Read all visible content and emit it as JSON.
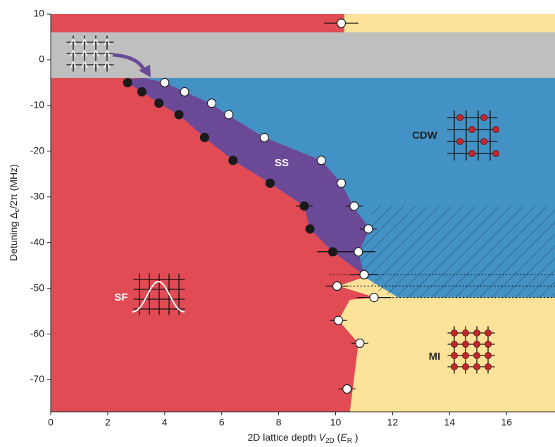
{
  "chart_data": {
    "type": "scatter",
    "xlabel_parts": [
      "2D lattice depth ",
      "V",
      "2D",
      " (",
      "E",
      "R",
      " )"
    ],
    "ylabel_parts": [
      "Detuning Δ",
      "c",
      "/2π (MHz)"
    ],
    "xlim": [
      0,
      17.7
    ],
    "ylim": [
      -77,
      10
    ],
    "xticks": [
      0,
      2,
      4,
      6,
      8,
      10,
      12,
      14,
      16
    ],
    "yticks": [
      10,
      0,
      -10,
      -20,
      -30,
      -40,
      -50,
      -60,
      -70
    ],
    "regions": [
      {
        "color": "#e04b54",
        "x": [
          0,
          17.7,
          17.7,
          0
        ],
        "y": [
          10,
          10,
          -77,
          -77
        ]
      },
      {
        "color": "#fde29a",
        "x": [
          10.3,
          17.7,
          17.7,
          10.3
        ],
        "y": [
          10,
          10,
          6,
          6
        ]
      },
      {
        "color": "#bfbfbf",
        "x": [
          0,
          17.7,
          17.7,
          0
        ],
        "y": [
          6,
          6,
          -4,
          -4
        ]
      },
      {
        "color": "#4392c6",
        "label": "CDW",
        "x": [
          3.3,
          17.7,
          17.7,
          12.2,
          11.4,
          11.0,
          10.8,
          11.2,
          10.6,
          10.2,
          9.5,
          7.5,
          6.2,
          5.6,
          4.7,
          4.0
        ],
        "y": [
          -4,
          -4,
          -52,
          -52,
          -50.5,
          -47,
          -42,
          -37,
          -32,
          -27,
          -22,
          -17,
          -12,
          -9.5,
          -7,
          -5
        ]
      },
      {
        "color": "#6a4a97",
        "label": "SS",
        "x": [
          2.6,
          3.3,
          4.0,
          4.7,
          5.6,
          6.2,
          7.5,
          9.5,
          10.2,
          10.6,
          11.2,
          10.8,
          11.0,
          9.9,
          9.1,
          8.9,
          7.7,
          6.4,
          5.4,
          4.5,
          3.8,
          3.2,
          2.7
        ],
        "y": [
          -4.2,
          -4,
          -5,
          -7,
          -9.5,
          -12,
          -17,
          -22,
          -27,
          -32,
          -37,
          -42,
          -47,
          -42,
          -37,
          -32,
          -27,
          -22,
          -17,
          -12,
          -9.5,
          -7,
          -5
        ]
      },
      {
        "color": "#fde29a",
        "label": "MI",
        "x": [
          11.0,
          12.2,
          17.7,
          17.7,
          10.5,
          10.8,
          10.1,
          10.5,
          11.4,
          10.1
        ],
        "y": [
          -47.5,
          -52,
          -52,
          -77,
          -77,
          -62,
          -57,
          -52.5,
          -52,
          -49.5
        ]
      },
      {
        "color": "none",
        "label": "SF",
        "x": [
          0
        ],
        "y": [
          -77
        ]
      }
    ],
    "hatch": {
      "x": [
        11.3,
        17.7,
        17.7,
        12.2,
        11.4,
        11.0,
        10.8,
        11.2
      ],
      "y": [
        -32,
        -32,
        -52,
        -52,
        -50.5,
        -47,
        -42,
        -37
      ]
    },
    "hlines": [
      {
        "y": -47,
        "x": [
          9.8,
          17.7
        ]
      },
      {
        "y": -49.5,
        "x": [
          10.5,
          17.7
        ]
      },
      {
        "y": -52,
        "x": [
          11.5,
          17.7
        ]
      }
    ],
    "series": [
      {
        "color": "#1a1a1a",
        "fill": "#1a1a1a",
        "x": [
          2.7,
          3.2,
          3.8,
          4.5,
          5.4,
          6.4,
          7.7,
          8.9,
          9.1,
          9.9
        ],
        "y": [
          -5,
          -7,
          -9.5,
          -12,
          -17,
          -22,
          -27,
          -32,
          -37,
          -42
        ],
        "xerr": [
          0,
          0,
          0,
          0,
          0,
          0,
          0,
          0.3,
          0.1,
          0.55
        ]
      },
      {
        "color": "#1a1a1a",
        "fill": "#ffffff",
        "x": [
          10.2,
          4.0,
          4.7,
          5.65,
          6.25,
          7.5,
          9.5,
          10.2,
          10.65,
          11.15,
          10.8,
          11.0,
          10.05,
          11.35,
          10.1,
          10.85,
          10.4
        ],
        "y": [
          8,
          -5,
          -7,
          -9.5,
          -12,
          -17,
          -22,
          -27,
          -32,
          -37,
          -42,
          -47,
          -49.5,
          -52,
          -57,
          -62,
          -72
        ],
        "xerr": [
          0.6,
          0,
          0,
          0,
          0,
          0,
          0,
          0,
          0.3,
          0.3,
          0.6,
          0.5,
          0.4,
          0.6,
          0.3,
          0.3,
          0.3
        ]
      }
    ]
  }
}
